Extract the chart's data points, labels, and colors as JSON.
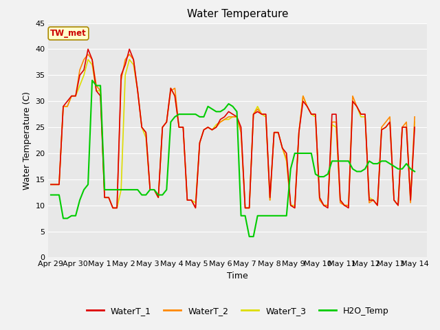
{
  "title": "Water Temperature",
  "xlabel": "Time",
  "ylabel": "Water Temperature (C)",
  "ylim": [
    0,
    45
  ],
  "annotation_text": "TW_met",
  "annotation_color": "#cc0000",
  "annotation_bg": "#ffffcc",
  "annotation_border": "#aa8800",
  "fig_bg": "#f2f2f2",
  "plot_bg": "#e8e8e8",
  "series_colors": {
    "WaterT_1": "#dd0000",
    "WaterT_2": "#ff8800",
    "WaterT_3": "#dddd00",
    "H2O_Temp": "#00cc00"
  },
  "x_tick_labels": [
    "Apr 29",
    "Apr 30",
    "May 1",
    "May 2",
    "May 3",
    "May 4",
    "May 5",
    "May 6",
    "May 7",
    "May 8",
    "May 9",
    "May 10",
    "May 11",
    "May 12",
    "May 13",
    "May 14"
  ],
  "x_tick_positions": [
    0,
    1,
    2,
    3,
    4,
    5,
    6,
    7,
    8,
    9,
    10,
    11,
    12,
    13,
    14,
    15
  ],
  "WaterT_1": [
    14.0,
    14.0,
    14.0,
    29.0,
    30.0,
    31.0,
    31.0,
    35.0,
    36.0,
    40.0,
    38.0,
    32.0,
    31.0,
    11.5,
    11.5,
    9.5,
    9.5,
    35.0,
    37.0,
    40.0,
    38.0,
    32.0,
    25.0,
    24.0,
    13.0,
    13.0,
    11.5,
    25.0,
    26.0,
    32.5,
    31.0,
    25.0,
    25.0,
    11.0,
    11.0,
    9.5,
    22.0,
    24.5,
    25.0,
    24.5,
    25.0,
    26.5,
    27.0,
    28.0,
    27.5,
    27.0,
    25.0,
    9.5,
    9.5,
    27.5,
    28.0,
    27.5,
    27.5,
    11.5,
    24.0,
    24.0,
    21.0,
    20.0,
    10.0,
    9.5,
    24.0,
    30.0,
    29.0,
    27.5,
    27.5,
    11.5,
    10.0,
    9.5,
    27.5,
    27.5,
    11.0,
    10.0,
    9.5,
    30.0,
    29.0,
    27.5,
    27.5,
    11.0,
    11.0,
    10.0,
    24.5,
    25.0,
    26.0,
    11.0,
    10.0,
    25.0,
    25.0,
    11.0,
    25.0
  ],
  "WaterT_2": [
    14.0,
    14.0,
    14.0,
    29.0,
    29.0,
    31.0,
    31.0,
    36.0,
    38.0,
    39.0,
    38.0,
    33.0,
    32.0,
    11.5,
    11.5,
    9.5,
    9.5,
    34.0,
    38.0,
    39.0,
    38.0,
    32.0,
    25.0,
    24.0,
    13.0,
    13.0,
    11.5,
    25.0,
    26.0,
    32.0,
    32.5,
    25.0,
    25.0,
    11.0,
    11.0,
    9.5,
    22.0,
    24.5,
    25.0,
    24.5,
    25.0,
    26.0,
    26.5,
    27.0,
    27.0,
    27.0,
    24.0,
    9.5,
    9.5,
    27.5,
    28.5,
    27.5,
    27.5,
    11.0,
    24.0,
    24.0,
    21.0,
    19.0,
    10.0,
    9.5,
    24.0,
    31.0,
    29.0,
    27.5,
    27.5,
    11.0,
    10.0,
    10.0,
    26.0,
    26.0,
    10.5,
    10.0,
    10.0,
    31.0,
    29.0,
    27.5,
    27.5,
    10.5,
    11.0,
    10.0,
    25.0,
    26.0,
    27.0,
    11.0,
    10.0,
    25.0,
    26.0,
    10.5,
    27.0
  ],
  "WaterT_3": [
    14.0,
    14.0,
    14.0,
    29.0,
    29.0,
    31.0,
    31.0,
    33.0,
    35.0,
    38.0,
    37.0,
    32.0,
    32.0,
    11.5,
    11.5,
    9.5,
    9.5,
    13.0,
    35.0,
    38.0,
    37.0,
    32.0,
    25.0,
    23.0,
    13.0,
    13.0,
    11.5,
    25.0,
    26.0,
    32.5,
    31.0,
    25.0,
    25.0,
    11.0,
    11.0,
    10.5,
    22.0,
    24.5,
    25.0,
    24.5,
    25.5,
    26.0,
    26.5,
    26.5,
    27.0,
    27.0,
    24.0,
    9.5,
    9.5,
    27.5,
    29.0,
    27.5,
    27.0,
    11.0,
    24.0,
    24.0,
    21.0,
    18.5,
    10.0,
    10.0,
    24.0,
    31.0,
    29.0,
    27.5,
    27.0,
    11.5,
    10.0,
    10.0,
    25.5,
    25.0,
    11.0,
    10.0,
    10.0,
    30.0,
    29.0,
    27.0,
    27.0,
    11.5,
    11.0,
    10.0,
    24.5,
    25.0,
    26.0,
    11.0,
    10.0,
    25.0,
    25.0,
    11.0,
    26.0
  ],
  "H2O_Temp": [
    12.0,
    12.0,
    12.0,
    7.5,
    7.5,
    8.0,
    8.0,
    11.0,
    13.0,
    14.0,
    34.0,
    33.0,
    33.0,
    13.0,
    13.0,
    13.0,
    13.0,
    13.0,
    13.0,
    13.0,
    13.0,
    13.0,
    12.0,
    12.0,
    13.0,
    13.0,
    12.0,
    12.0,
    13.0,
    26.0,
    27.0,
    27.5,
    27.5,
    27.5,
    27.5,
    27.5,
    27.0,
    27.0,
    29.0,
    28.5,
    28.0,
    28.0,
    28.5,
    29.5,
    29.0,
    28.0,
    8.0,
    8.0,
    4.0,
    4.0,
    8.0,
    8.0,
    8.0,
    8.0,
    8.0,
    8.0,
    8.0,
    8.0,
    17.0,
    20.0,
    20.0,
    20.0,
    20.0,
    20.0,
    16.0,
    15.5,
    15.5,
    16.0,
    18.5,
    18.5,
    18.5,
    18.5,
    18.5,
    17.0,
    16.5,
    16.5,
    17.0,
    18.5,
    18.0,
    18.0,
    18.5,
    18.5,
    18.0,
    17.5,
    17.0,
    17.0,
    18.0,
    17.0,
    16.5
  ]
}
